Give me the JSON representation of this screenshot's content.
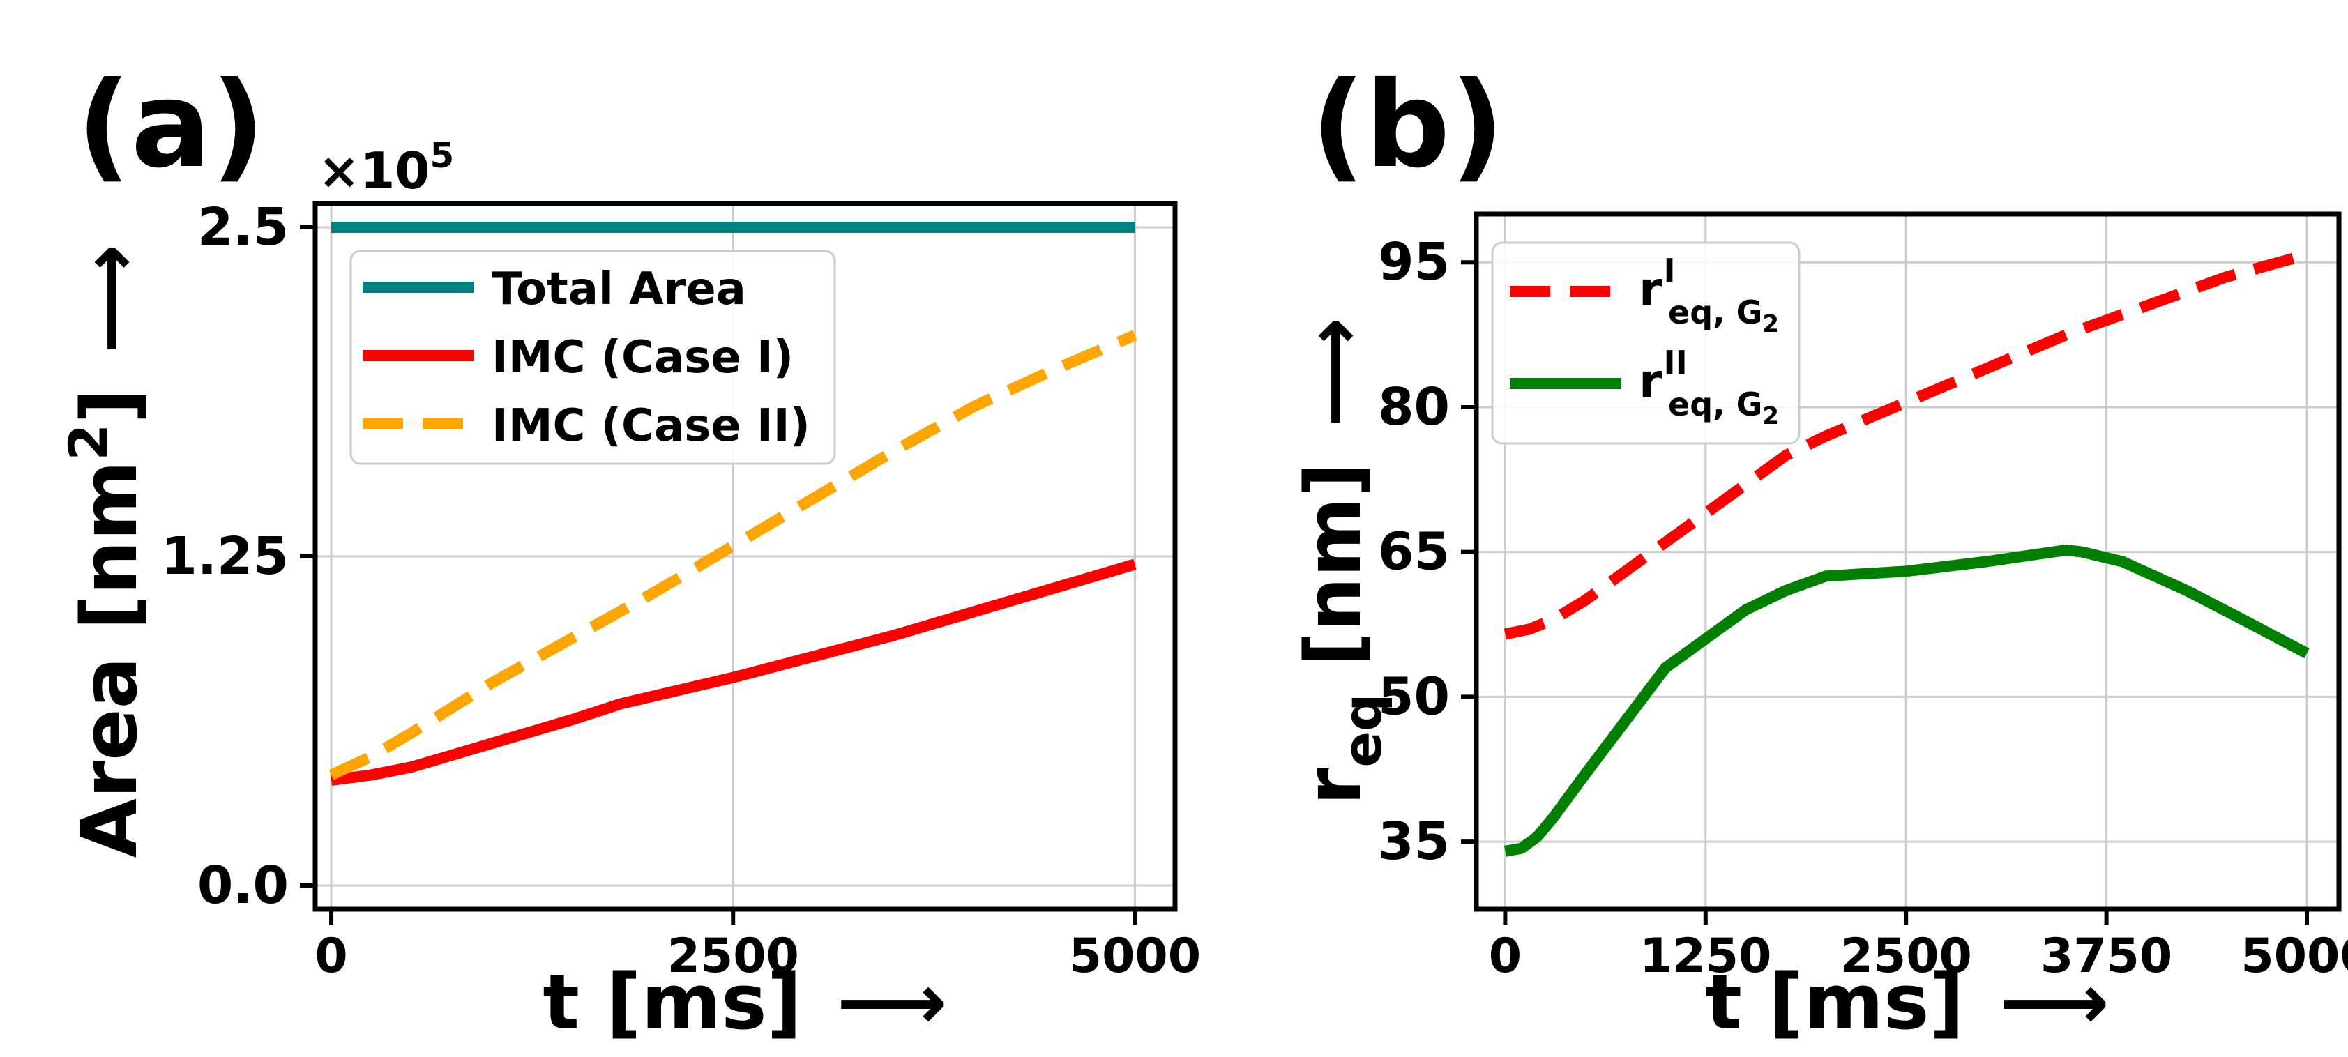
{
  "panels": {
    "a": {
      "label": "(a)",
      "multiplier_base": "×10",
      "multiplier_exp": "5",
      "xlabel": "t [ms]",
      "ylabel_main": "Area [nm",
      "ylabel_sup": "2",
      "ylabel_end": "]",
      "arrow": "⟶"
    },
    "b": {
      "label": "(b)",
      "xlabel": "t [ms]",
      "ylabel_main": "r",
      "ylabel_sub": "eq",
      "ylabel_end": " [nm]",
      "arrow": "⟶"
    }
  },
  "legend_a": [
    {
      "text": "Total Area"
    },
    {
      "text": "IMC (Case I)"
    },
    {
      "text": "IMC (Case II)"
    }
  ],
  "legend_b": [
    {
      "base": "r",
      "sup": "I",
      "sub": "eq, G",
      "subsub": "2"
    },
    {
      "base": "r",
      "sup": "II",
      "sub": "eq, G",
      "subsub": "2"
    }
  ],
  "chart_data": [
    {
      "type": "line",
      "xlabel": "t [ms]",
      "ylabel": "Area [nm²]",
      "xlim": [
        -100,
        5250
      ],
      "ylim": [
        -0.09,
        2.59
      ],
      "xticks": [
        0,
        2500,
        5000
      ],
      "xtick_labels": [
        "0",
        "2500",
        "5000"
      ],
      "yticks": [
        0.0,
        1.25,
        2.5
      ],
      "ytick_labels": [
        "0.0",
        "1.25",
        "2.5"
      ],
      "y_multiplier": "×10^5",
      "grid": true,
      "legend_position": "upper-left",
      "series": [
        {
          "name": "Total Area",
          "color": "#008080",
          "dash": "solid",
          "x": [
            0,
            5000
          ],
          "y": [
            2.5,
            2.5
          ]
        },
        {
          "name": "IMC (Case I)",
          "color": "#ff0000",
          "dash": "solid",
          "x": [
            0,
            250,
            500,
            1000,
            1500,
            1800,
            2500,
            3000,
            3500,
            4000,
            4500,
            5000
          ],
          "y": [
            0.4,
            0.42,
            0.45,
            0.54,
            0.63,
            0.69,
            0.79,
            0.87,
            0.95,
            1.04,
            1.13,
            1.22
          ]
        },
        {
          "name": "IMC (Case II)",
          "color": "#ffa500",
          "dash": "dashed",
          "x": [
            0,
            250,
            500,
            1000,
            1500,
            2000,
            2500,
            3000,
            3500,
            4000,
            4500,
            5000
          ],
          "y": [
            0.42,
            0.49,
            0.58,
            0.77,
            0.94,
            1.11,
            1.29,
            1.47,
            1.65,
            1.82,
            1.96,
            2.09
          ]
        }
      ]
    },
    {
      "type": "line",
      "xlabel": "t [ms]",
      "ylabel": "r_eq [nm]",
      "xlim": [
        -180,
        5200
      ],
      "ylim": [
        28,
        100
      ],
      "xticks": [
        0,
        1250,
        2500,
        3750,
        5000
      ],
      "xtick_labels": [
        "0",
        "1250",
        "2500",
        "3750",
        "5000"
      ],
      "yticks": [
        35,
        50,
        65,
        80,
        95
      ],
      "ytick_labels": [
        "35",
        "50",
        "65",
        "80",
        "95"
      ],
      "grid": true,
      "legend_position": "upper-left",
      "series": [
        {
          "name": "r^I_eq,G2",
          "color": "#ff0000",
          "dash": "dashed",
          "x": [
            0,
            150,
            300,
            500,
            750,
            1000,
            1250,
            1500,
            1750,
            2000,
            2500,
            3000,
            3500,
            4000,
            4500,
            5000
          ],
          "y": [
            56.5,
            57.0,
            58.0,
            60.0,
            63.0,
            66.0,
            69.0,
            72.0,
            75.0,
            77.0,
            80.5,
            84.0,
            87.5,
            90.5,
            93.5,
            95.8
          ]
        },
        {
          "name": "r^II_eq,G2",
          "color": "#008000",
          "dash": "solid",
          "x": [
            0,
            100,
            200,
            300,
            500,
            750,
            1000,
            1250,
            1500,
            1750,
            2000,
            2500,
            3000,
            3250,
            3500,
            3600,
            3850,
            4250,
            4600,
            5000
          ],
          "y": [
            34.0,
            34.3,
            35.5,
            37.5,
            42.0,
            47.5,
            53.0,
            56.0,
            59.0,
            61.0,
            62.5,
            63.0,
            64.0,
            64.6,
            65.2,
            65.0,
            64.0,
            61.0,
            58.0,
            54.5
          ]
        }
      ]
    }
  ]
}
